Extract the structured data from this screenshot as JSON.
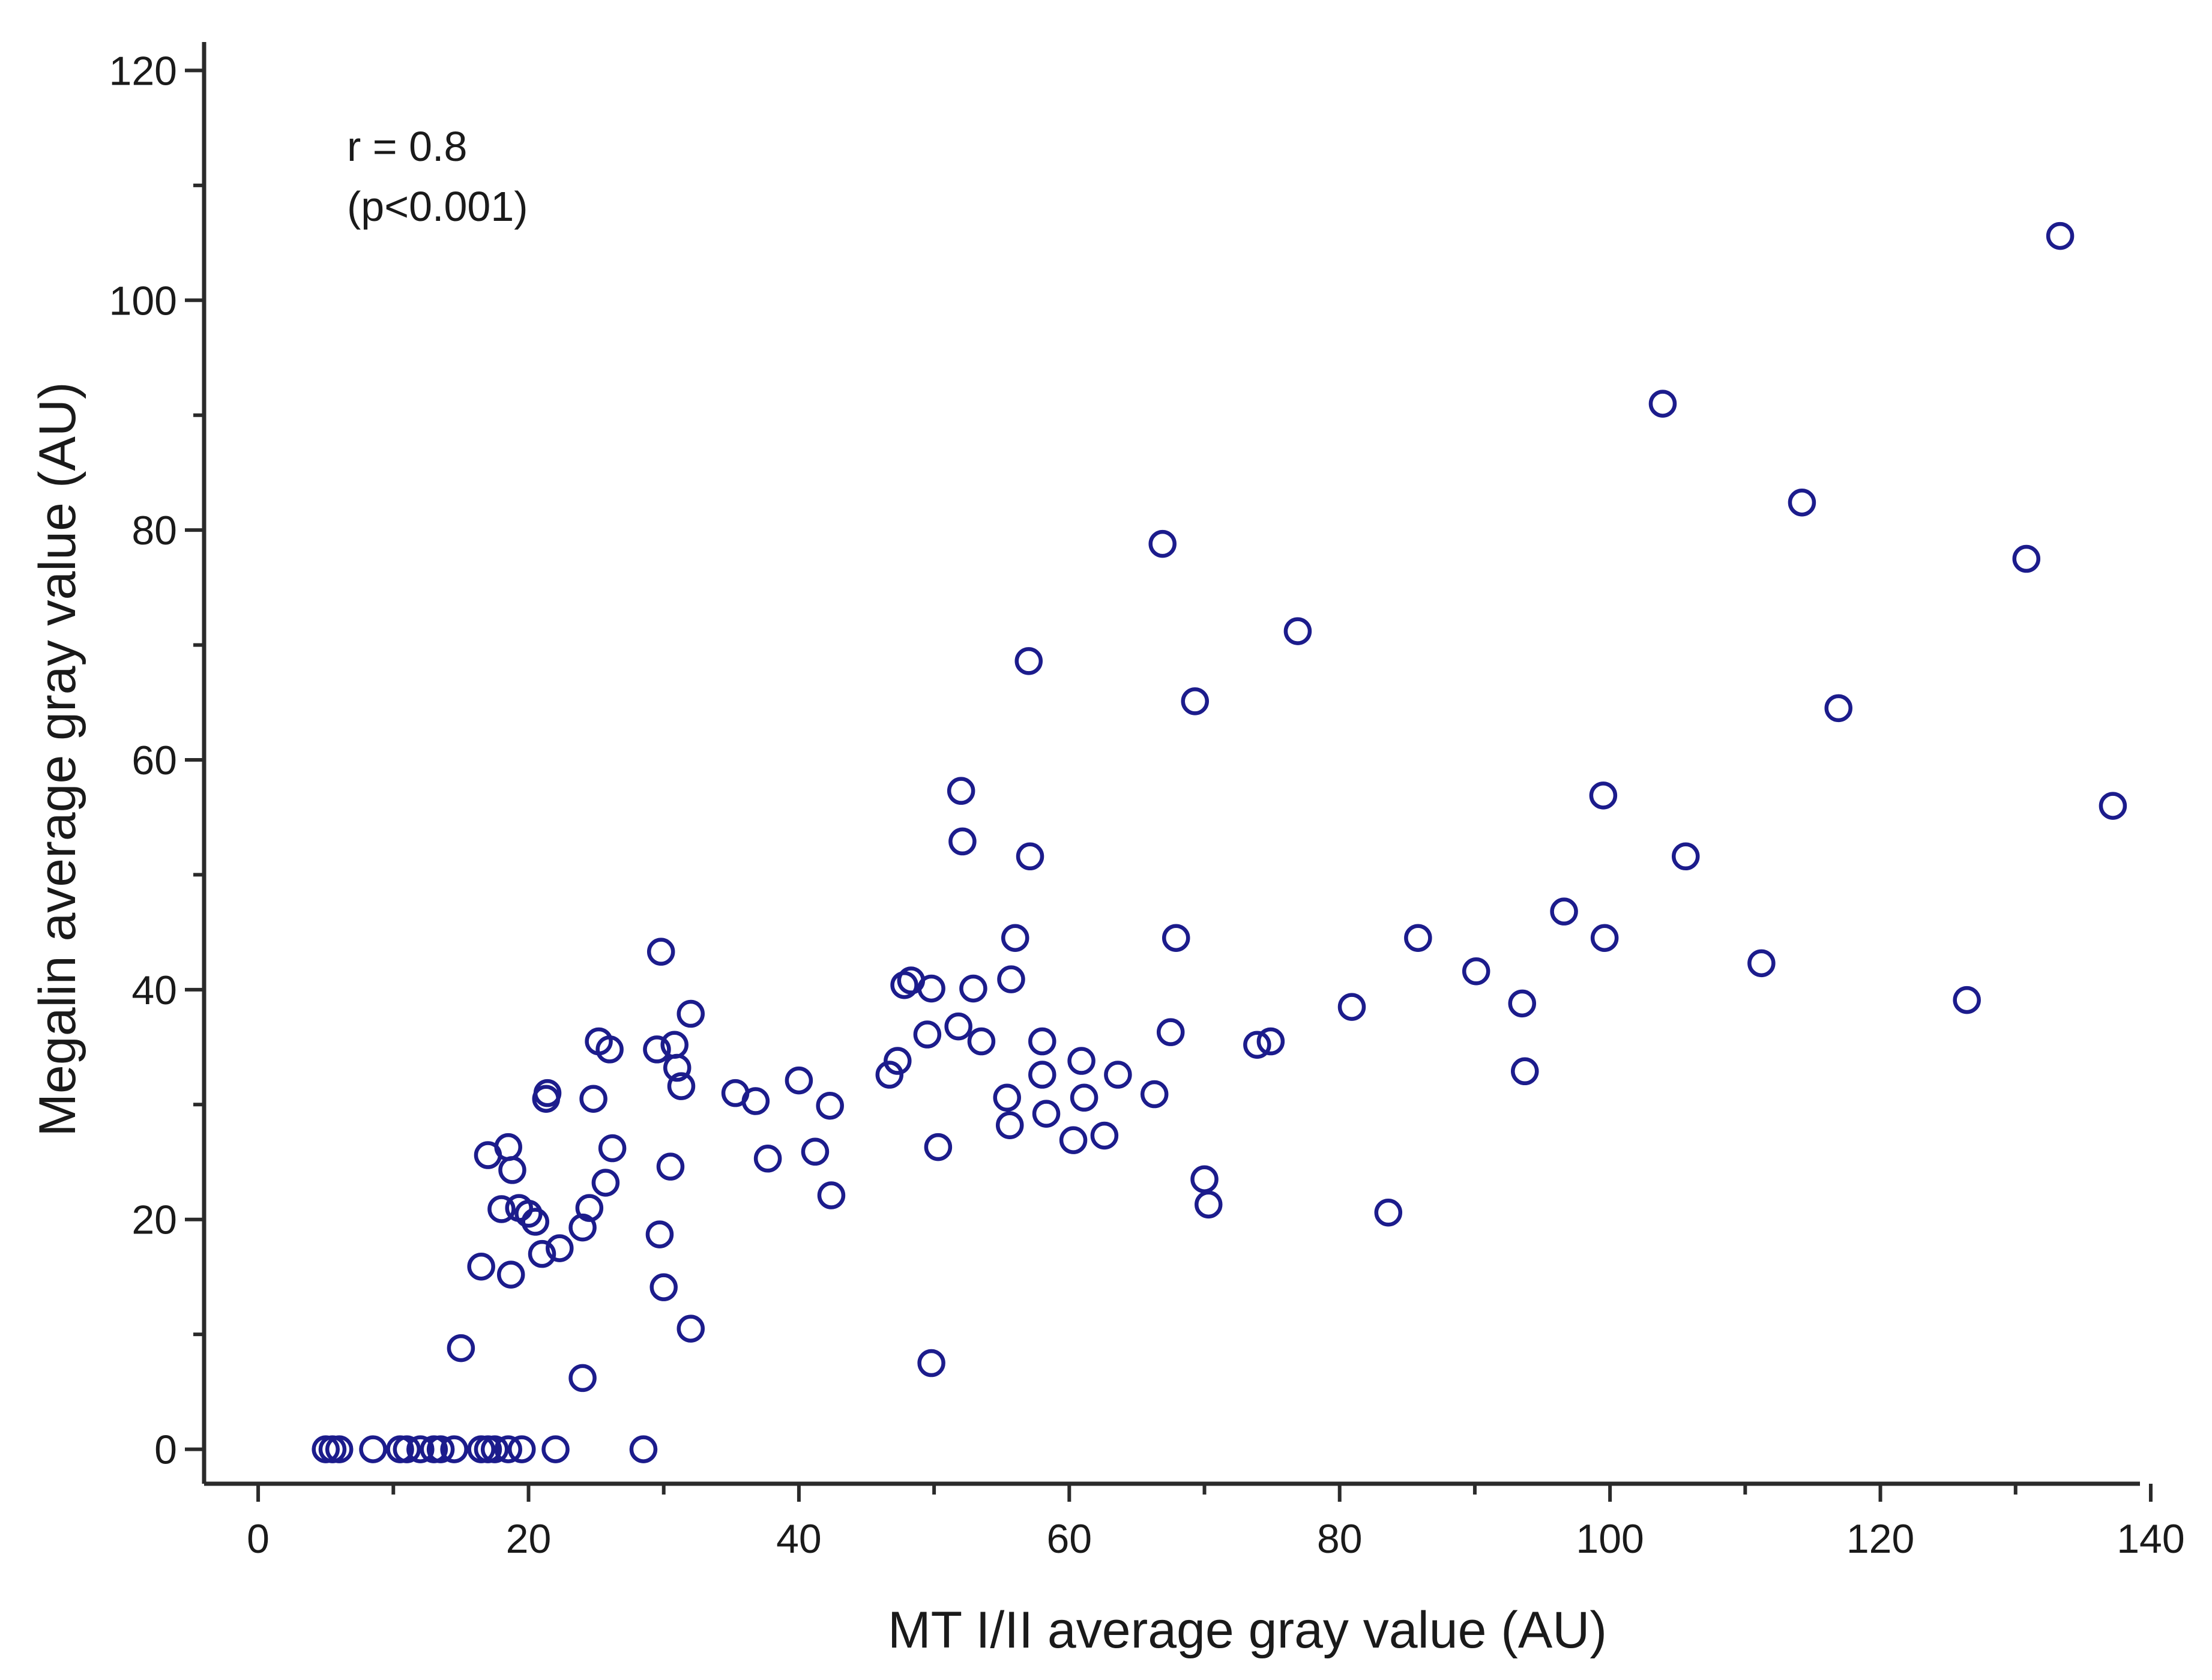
{
  "chart_data": {
    "type": "scatter",
    "title": "",
    "xlabel": "MT I/II average gray value (AU)",
    "ylabel": "Megalin average gray value (AU)",
    "xlim": [
      -4,
      142
    ],
    "ylim": [
      -3,
      123
    ],
    "xticks": [
      0,
      20,
      40,
      60,
      80,
      100,
      120,
      140
    ],
    "yticks": [
      0,
      20,
      40,
      60,
      80,
      100,
      120
    ],
    "xticks_minor": [
      10,
      30,
      50,
      70,
      90,
      110,
      130
    ],
    "yticks_minor": [
      10,
      30,
      50,
      70,
      90,
      110
    ],
    "grid": false,
    "annotation_r": "r =  0.8",
    "annotation_p": "(p<0.001)",
    "marker_color": "#1c1c8c",
    "series": [
      {
        "name": "samples",
        "points": [
          [
            5,
            0
          ],
          [
            5.5,
            0
          ],
          [
            6,
            0
          ],
          [
            8.5,
            0
          ],
          [
            10.5,
            0
          ],
          [
            11,
            0
          ],
          [
            12,
            0
          ],
          [
            13,
            0
          ],
          [
            13.5,
            0
          ],
          [
            14.5,
            0
          ],
          [
            16.5,
            0
          ],
          [
            17,
            0
          ],
          [
            17.5,
            0
          ],
          [
            18.5,
            0
          ],
          [
            19.5,
            0
          ],
          [
            22,
            0
          ],
          [
            28.5,
            0
          ],
          [
            15,
            8.8
          ],
          [
            16.5,
            15.9
          ],
          [
            17,
            25.6
          ],
          [
            18,
            20.9
          ],
          [
            18.5,
            26.3
          ],
          [
            18.7,
            15.2
          ],
          [
            18.8,
            24.3
          ],
          [
            19.3,
            21
          ],
          [
            20,
            20.5
          ],
          [
            20.5,
            19.8
          ],
          [
            21,
            17
          ],
          [
            21.3,
            30.5
          ],
          [
            21.4,
            31
          ],
          [
            22.3,
            17.5
          ],
          [
            24,
            19.3
          ],
          [
            24.5,
            21
          ],
          [
            24.8,
            30.5
          ],
          [
            25.2,
            35.5
          ],
          [
            25.7,
            23.2
          ],
          [
            26,
            34.8
          ],
          [
            26.2,
            26.2
          ],
          [
            24,
            6.2
          ],
          [
            29.5,
            34.8
          ],
          [
            29.7,
            18.7
          ],
          [
            29.8,
            43.3
          ],
          [
            30,
            14.1
          ],
          [
            30.5,
            24.6
          ],
          [
            30.8,
            35.2
          ],
          [
            31,
            33.2
          ],
          [
            31.3,
            31.6
          ],
          [
            32,
            37.9
          ],
          [
            32,
            10.5
          ],
          [
            35.3,
            31
          ],
          [
            36.8,
            30.3
          ],
          [
            37.7,
            25.3
          ],
          [
            40,
            32.1
          ],
          [
            41.2,
            25.9
          ],
          [
            42.3,
            29.9
          ],
          [
            42.4,
            22.1
          ],
          [
            46.7,
            32.6
          ],
          [
            47.3,
            33.8
          ],
          [
            47.8,
            40.4
          ],
          [
            48.3,
            40.8
          ],
          [
            49.5,
            36.1
          ],
          [
            49.8,
            40.1
          ],
          [
            49.8,
            7.5
          ],
          [
            50.3,
            26.3
          ],
          [
            51.8,
            36.8
          ],
          [
            52,
            57.3
          ],
          [
            52.1,
            52.9
          ],
          [
            52.9,
            40.1
          ],
          [
            53.5,
            35.5
          ],
          [
            55.4,
            30.6
          ],
          [
            55.6,
            28.2
          ],
          [
            55.7,
            40.9
          ],
          [
            56,
            44.5
          ],
          [
            57,
            68.6
          ],
          [
            57.1,
            51.6
          ],
          [
            58,
            35.5
          ],
          [
            58,
            32.6
          ],
          [
            58.3,
            29.2
          ],
          [
            60.3,
            26.9
          ],
          [
            60.9,
            33.8
          ],
          [
            61.1,
            30.6
          ],
          [
            62.6,
            27.3
          ],
          [
            63.6,
            32.6
          ],
          [
            66.3,
            30.9
          ],
          [
            66.9,
            78.8
          ],
          [
            67.5,
            36.3
          ],
          [
            67.9,
            44.5
          ],
          [
            69.3,
            65.1
          ],
          [
            70,
            23.5
          ],
          [
            70.3,
            21.3
          ],
          [
            73.9,
            35.2
          ],
          [
            74.9,
            35.5
          ],
          [
            76.9,
            71.2
          ],
          [
            80.9,
            38.5
          ],
          [
            83.6,
            20.6
          ],
          [
            85.8,
            44.5
          ],
          [
            90.1,
            41.6
          ],
          [
            93.5,
            38.8
          ],
          [
            93.7,
            32.9
          ],
          [
            96.6,
            46.8
          ],
          [
            99.5,
            56.9
          ],
          [
            99.6,
            44.5
          ],
          [
            103.9,
            91
          ],
          [
            105.6,
            51.6
          ],
          [
            111.2,
            42.3
          ],
          [
            114.2,
            82.4
          ],
          [
            116.9,
            64.5
          ],
          [
            126.4,
            39.1
          ],
          [
            130.8,
            77.5
          ],
          [
            133.3,
            105.6
          ],
          [
            137.2,
            56
          ]
        ]
      }
    ]
  }
}
